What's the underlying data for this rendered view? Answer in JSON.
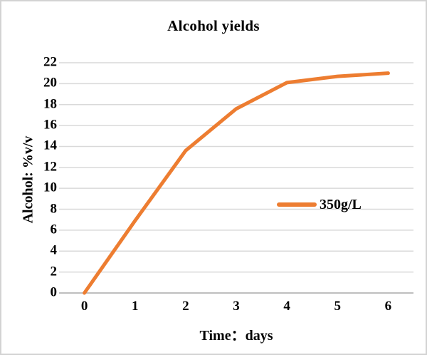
{
  "chart_data": {
    "type": "line",
    "title": "Alcohol yields",
    "xlabel": "Time：days",
    "ylabel": "Alcohol: %v/v",
    "categories": [
      "0",
      "1",
      "2",
      "3",
      "4",
      "5",
      "6"
    ],
    "series": [
      {
        "name": "350g/L",
        "values": [
          0,
          6.9,
          13.6,
          17.6,
          20.1,
          20.7,
          21.0
        ]
      }
    ],
    "ylim": [
      0,
      22
    ],
    "ytick_step": 2,
    "grid": "horizontal",
    "legend_position": "middle-right",
    "colors": {
      "series": "#ED7D31",
      "gridline": "#D9D9D9",
      "axis": "#BFBFBF",
      "text": "#000000",
      "background": "#FFFFFF",
      "border": "#D3D3D3"
    }
  }
}
